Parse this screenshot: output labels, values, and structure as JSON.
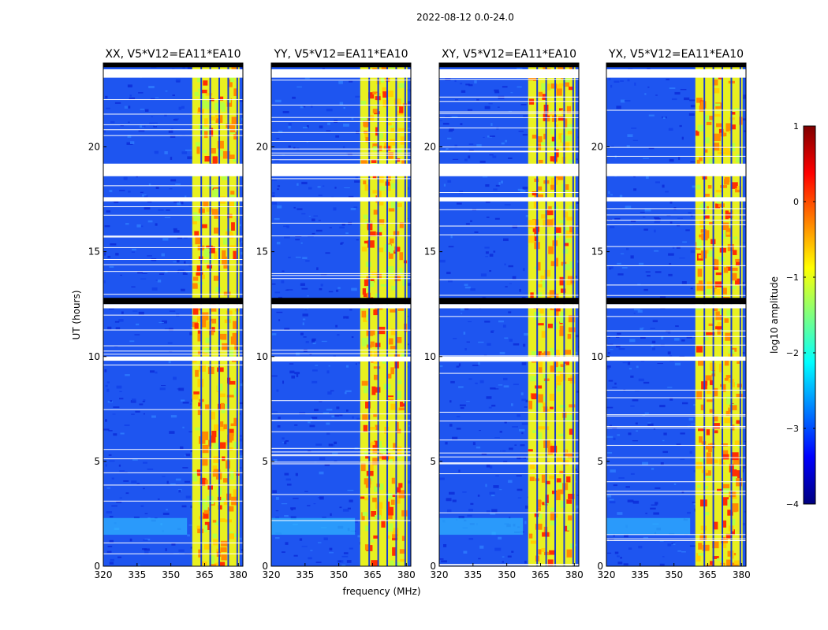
{
  "chart_data": {
    "type": "heatmap",
    "suptitle": "2022-08-12 0.0-24.0",
    "xlabel": "frequency (MHz)",
    "ylabel": "UT (hours)",
    "xlim": [
      320,
      382
    ],
    "ylim": [
      0,
      24
    ],
    "xticks": [
      320,
      335,
      350,
      365,
      380
    ],
    "yticks": [
      0,
      5,
      10,
      15,
      20
    ],
    "xtick_labels": [
      "320",
      "335",
      "350",
      "365",
      "380"
    ],
    "ytick_labels": [
      "0",
      "5",
      "10",
      "15",
      "20"
    ],
    "panels": [
      {
        "title": "XX, V5*V12=EA11*EA10",
        "band_mhz": [
          359.5,
          380.5
        ],
        "flagged_cols_mhz": [
          363.5,
          367.5,
          371.5,
          375.5,
          379.5
        ]
      },
      {
        "title": "YY, V5*V12=EA11*EA10",
        "band_mhz": [
          359.5,
          380.5
        ],
        "flagged_cols_mhz": [
          363.5,
          367.5,
          371.5,
          375.5,
          379.5
        ]
      },
      {
        "title": "XY, V5*V12=EA11*EA10",
        "band_mhz": [
          359.5,
          380.5
        ],
        "flagged_cols_mhz": [
          363.5,
          367.5,
          371.5,
          375.5,
          379.5
        ]
      },
      {
        "title": "YX, V5*V12=EA11*EA10",
        "band_mhz": [
          359.5,
          380.5
        ],
        "flagged_cols_mhz": [
          363.5,
          367.5,
          371.5,
          375.5,
          379.5
        ]
      }
    ],
    "flagged_time_bands_hours": [
      [
        23.3,
        23.7
      ],
      [
        18.6,
        19.2
      ],
      [
        17.4,
        17.6
      ],
      [
        12.3,
        12.5
      ],
      [
        9.8,
        10.0
      ]
    ],
    "black_time_bands_hours": [
      [
        23.8,
        24.0
      ],
      [
        12.5,
        12.8
      ]
    ],
    "colorbar": {
      "label": "log10 amplitude",
      "range": [
        -4,
        1
      ],
      "ticks": [
        1,
        0,
        -1,
        -2,
        -3,
        -4
      ],
      "tick_labels": [
        "1",
        "0",
        "−1",
        "−2",
        "−3",
        "−4"
      ],
      "colormap": "jet",
      "colors": [
        "#00007f",
        "#0000ff",
        "#007fff",
        "#00ffff",
        "#7fff7f",
        "#ffff00",
        "#ff7f00",
        "#ff0000",
        "#7f0000"
      ]
    }
  }
}
